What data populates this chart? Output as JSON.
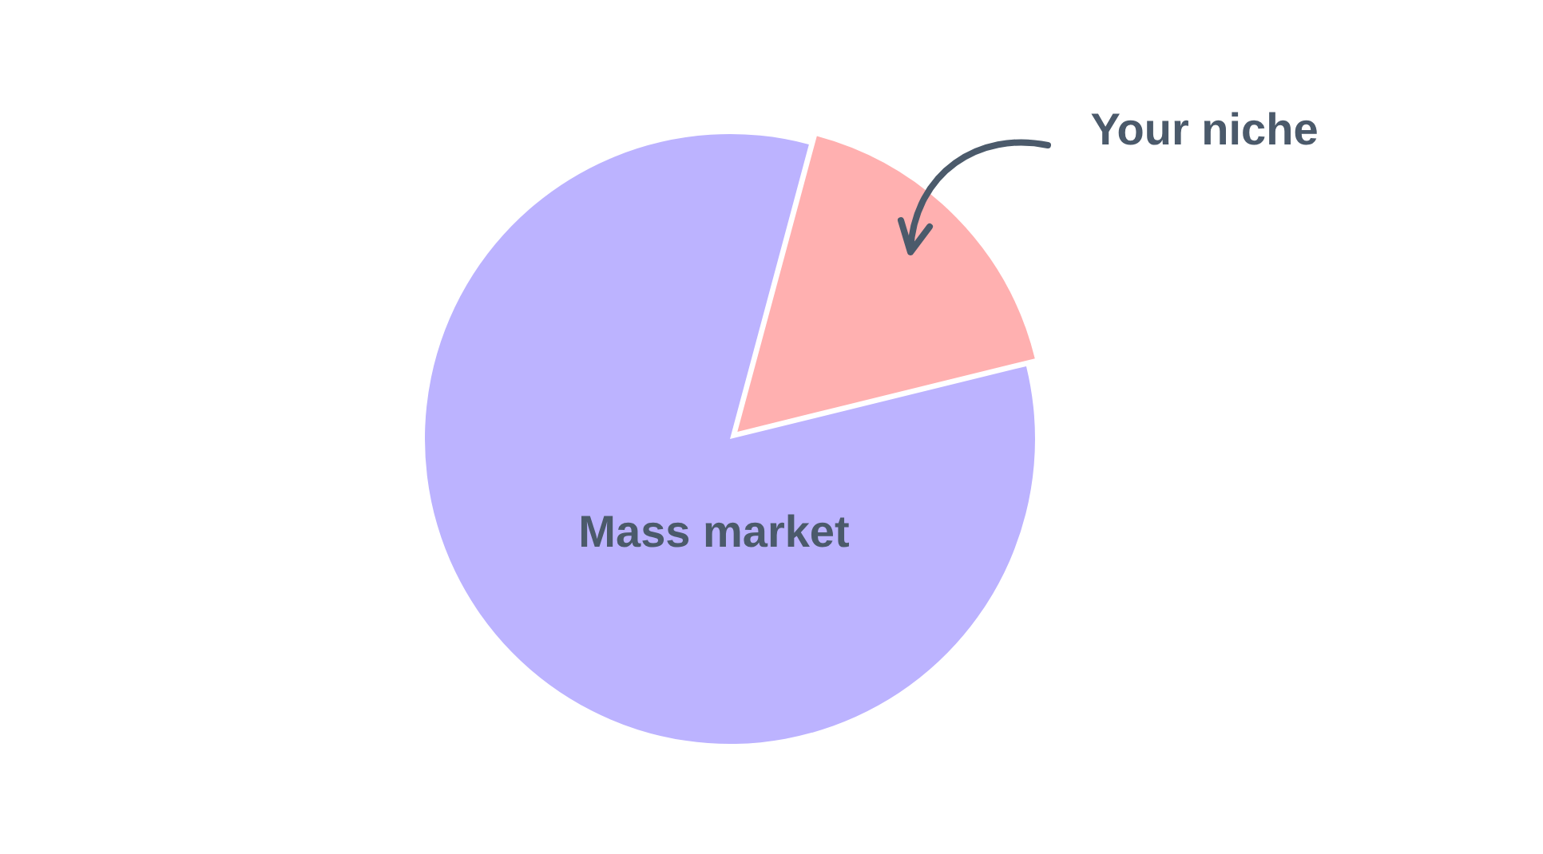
{
  "chart_data": {
    "type": "pie",
    "categories": [
      "Your niche",
      "Mass market"
    ],
    "values": [
      17,
      83
    ],
    "colors": [
      "#ffb0b0",
      "#bcb3ff"
    ],
    "legend": false
  }
}
